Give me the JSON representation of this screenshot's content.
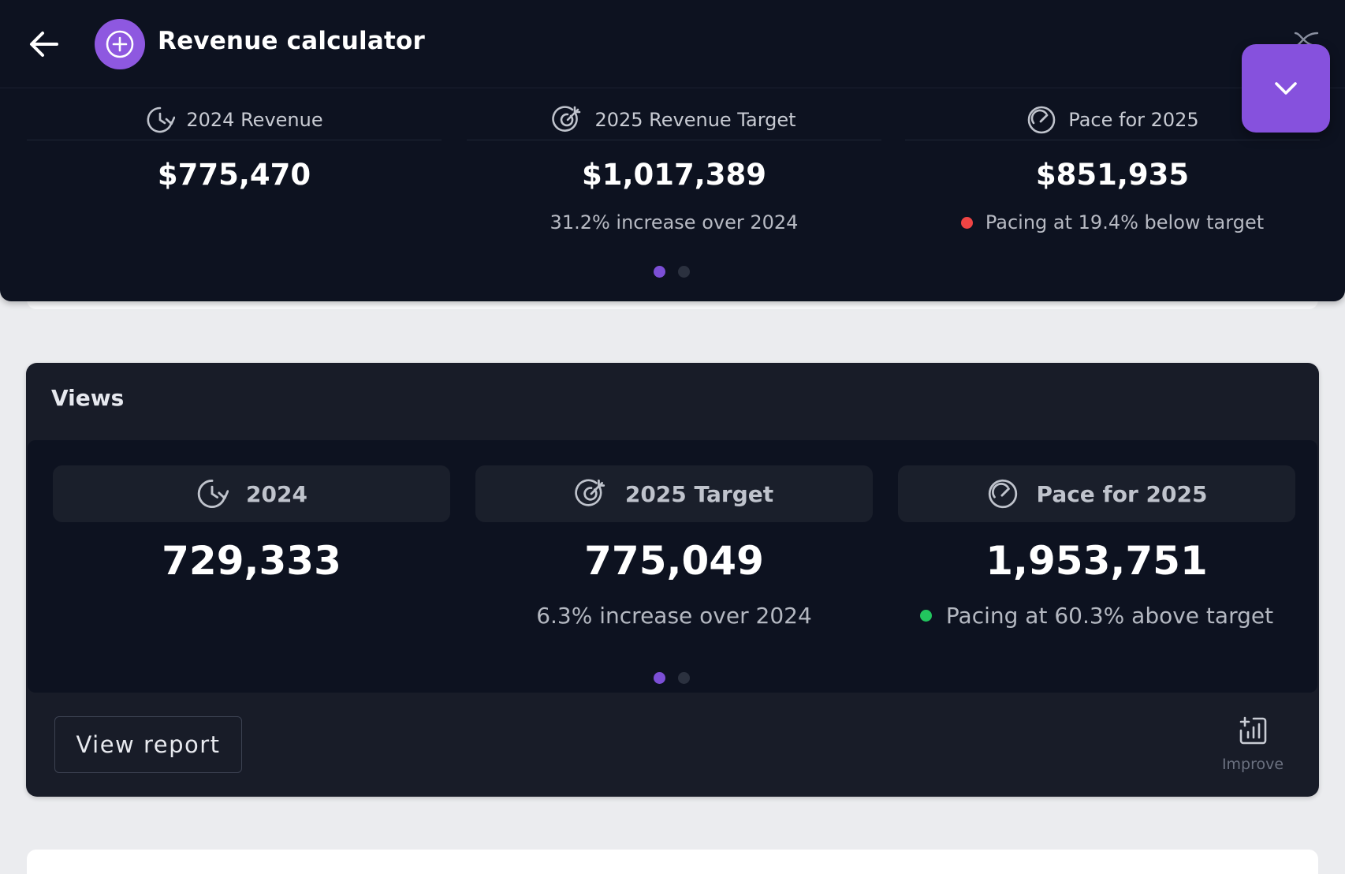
{
  "header": {
    "title": "Revenue calculator",
    "back_icon": "arrow-left-icon",
    "badge_icon": "plus-circle-icon",
    "collapse_icon": "chevron-down-icon",
    "colors": {
      "accent": "#8651dd",
      "header_bg": "#0d1220"
    }
  },
  "revenue": {
    "columns": [
      {
        "label": "2024 Revenue",
        "icon": "history-icon",
        "value": "$775,470",
        "sub": ""
      },
      {
        "label": "2025 Revenue Target",
        "icon": "target-icon",
        "value": "$1,017,389",
        "sub": "31.2% increase over 2024"
      },
      {
        "label": "Pace for 2025",
        "icon": "speedometer-icon",
        "value": "$851,935",
        "sub": "Pacing at 19.4% below target",
        "status": "below",
        "status_color": "#ef4444"
      }
    ],
    "pager": {
      "pages": 2,
      "active": 1
    }
  },
  "views": {
    "title": "Views",
    "columns": [
      {
        "label": "2024",
        "icon": "history-icon",
        "value": "729,333",
        "sub": ""
      },
      {
        "label": "2025 Target",
        "icon": "target-icon",
        "value": "775,049",
        "sub": "6.3% increase over 2024"
      },
      {
        "label": "Pace for 2025",
        "icon": "speedometer-icon",
        "value": "1,953,751",
        "sub": "Pacing at 60.3% above target",
        "status": "above",
        "status_color": "#22c55e"
      }
    ],
    "pager": {
      "pages": 2,
      "active": 1
    },
    "view_report_label": "View report",
    "improve_label": "Improve",
    "improve_icon": "chart-plus-icon"
  }
}
